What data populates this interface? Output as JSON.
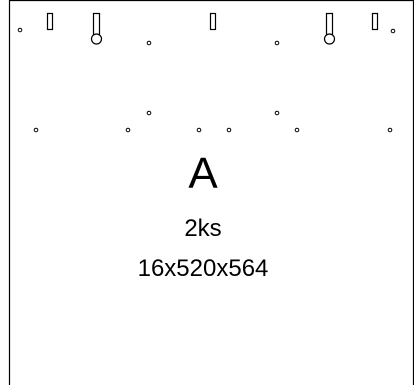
{
  "part": {
    "letter": "A",
    "quantity": "2ks",
    "dimensions": "16x520x564"
  },
  "colors": {
    "line": "#000000",
    "background": "#ffffff"
  }
}
